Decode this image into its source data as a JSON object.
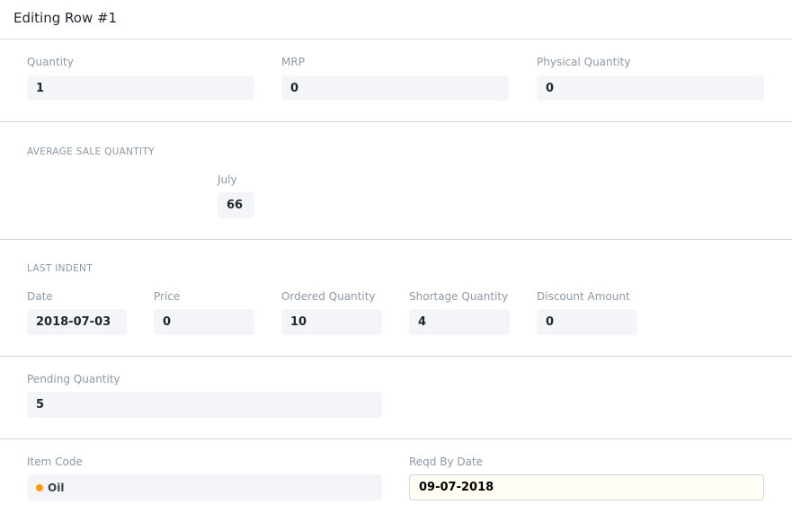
{
  "title": "Editing Row #1",
  "row1": [
    {
      "label": "Quantity",
      "value": "1"
    },
    {
      "label": "MRP",
      "value": "0"
    },
    {
      "label": "Physical Quantity",
      "value": "0"
    }
  ],
  "avg_sale": {
    "heading": "AVERAGE SALE QUANTITY",
    "label": "July",
    "value": "66"
  },
  "last_indent": {
    "heading": "LAST INDENT",
    "fields": [
      {
        "label": "Date",
        "value": "2018-07-03"
      },
      {
        "label": "Price",
        "value": "0"
      },
      {
        "label": "Ordered Quantity",
        "value": "10"
      },
      {
        "label": "Shortage Quantity",
        "value": "4"
      },
      {
        "label": "Discount Amount",
        "value": "0"
      }
    ]
  },
  "pending": {
    "label": "Pending Quantity",
    "value": "5"
  },
  "item_code": {
    "label": "Item Code",
    "value": "Oil",
    "indicator_color": "#ff9800"
  },
  "reqd_by": {
    "label": "Reqd By Date",
    "value": "09-07-2018"
  }
}
